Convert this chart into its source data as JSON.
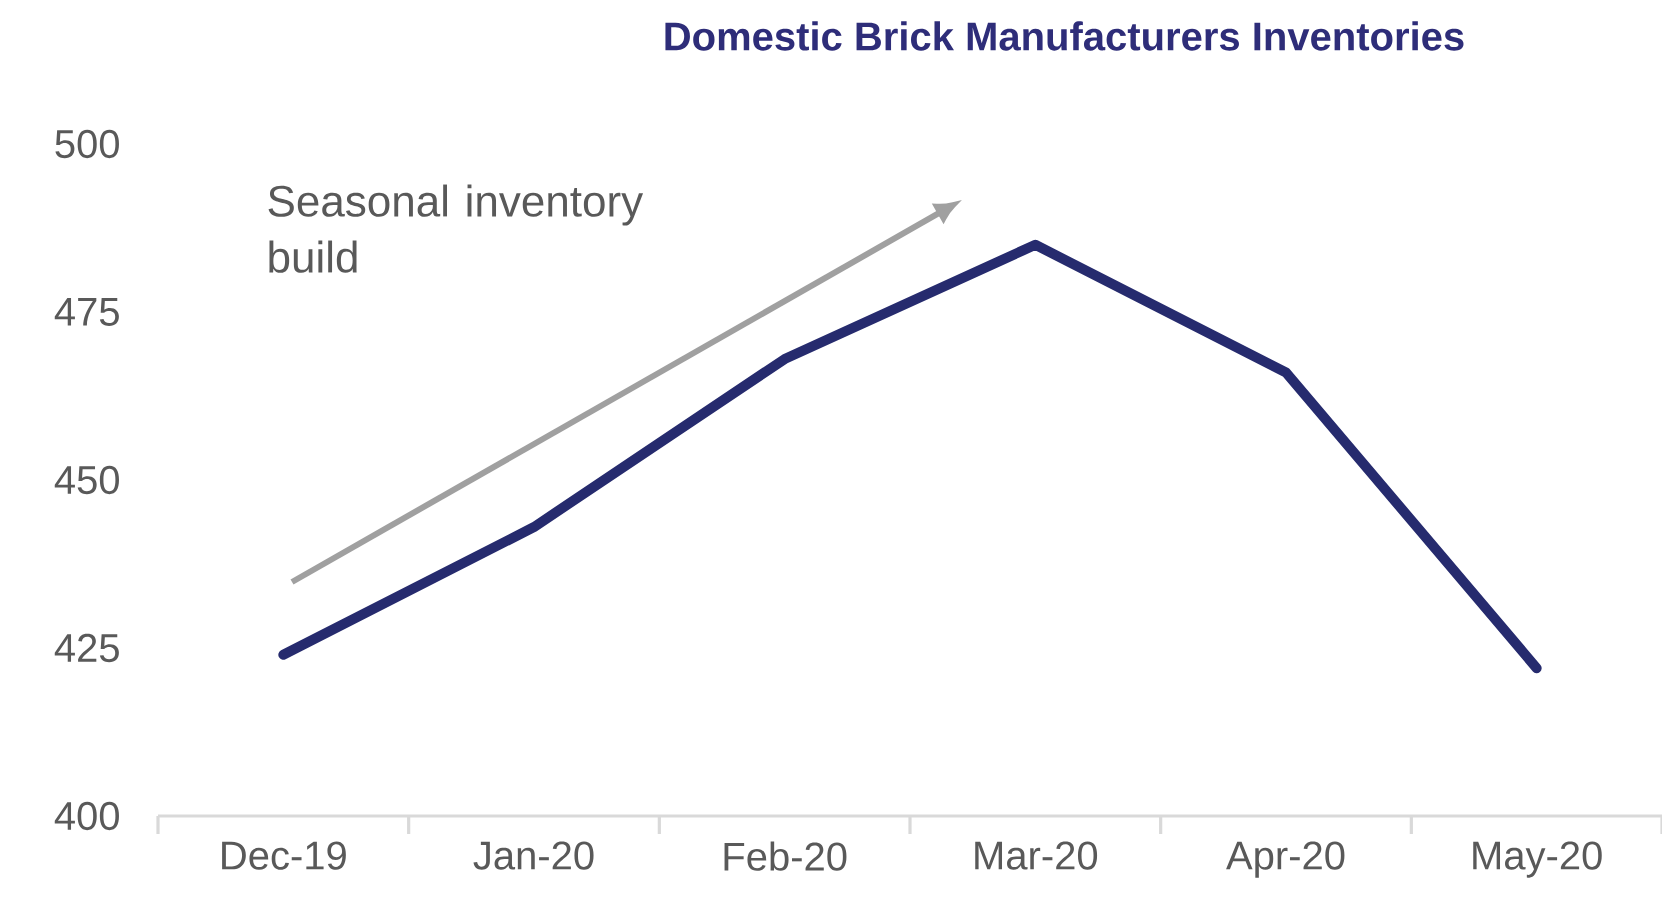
{
  "chart_data": {
    "type": "line",
    "title": "Domestic Brick Manufacturers Inventories",
    "categories": [
      "Dec-19",
      "Jan-20",
      "Feb-20",
      "Mar-20",
      "Apr-20",
      "May-20"
    ],
    "series": [
      {
        "color": "#262b6e",
        "values": [
          424,
          443,
          468,
          485,
          466,
          422
        ]
      }
    ],
    "ylim": [
      400,
      500
    ],
    "yticks": [
      400,
      425,
      450,
      475,
      500
    ],
    "annotations": [
      "Seasonal inventory build"
    ]
  }
}
